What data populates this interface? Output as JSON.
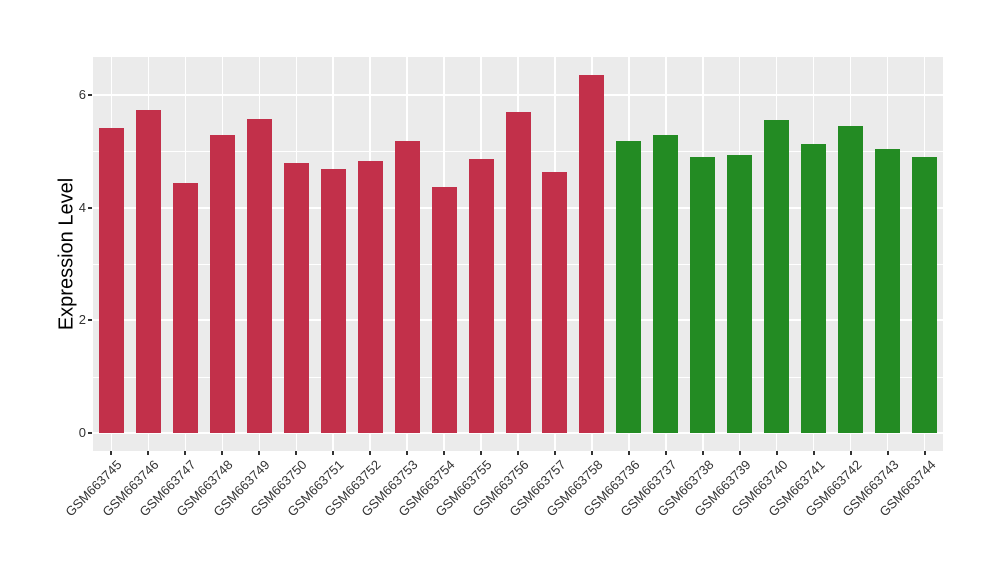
{
  "chart_data": {
    "type": "bar",
    "title": "",
    "xlabel": "",
    "ylabel": "Expression Level",
    "ylim": [
      0,
      6.68
    ],
    "yticks": [
      0,
      2,
      4,
      6
    ],
    "yticks_minor": [
      1,
      3,
      5
    ],
    "grid": "white major and minor gridlines on grey panel",
    "legend_position": "none",
    "figure_background": "#FFFFFF",
    "panel_background": "#EBEBEB",
    "gridline_color": "#FFFFFF",
    "axis_text_color": "#333333",
    "axis_title_color": "#000000",
    "tick_mark_color": "#333333",
    "group_colors": {
      "red": "#C2304A",
      "green": "#238B23"
    },
    "categories": [
      "GSM663745",
      "GSM663746",
      "GSM663747",
      "GSM663748",
      "GSM663749",
      "GSM663750",
      "GSM663751",
      "GSM663752",
      "GSM663753",
      "GSM663754",
      "GSM663755",
      "GSM663756",
      "GSM663757",
      "GSM663758",
      "GSM663736",
      "GSM663737",
      "GSM663738",
      "GSM663739",
      "GSM663740",
      "GSM663741",
      "GSM663742",
      "GSM663743",
      "GSM663744"
    ],
    "values": [
      5.42,
      5.74,
      4.43,
      5.28,
      5.57,
      4.79,
      4.68,
      4.83,
      5.19,
      4.37,
      4.86,
      5.69,
      4.64,
      6.35,
      5.18,
      5.29,
      4.9,
      4.93,
      5.55,
      5.13,
      5.45,
      5.04,
      4.89
    ],
    "bar_groups": [
      "red",
      "red",
      "red",
      "red",
      "red",
      "red",
      "red",
      "red",
      "red",
      "red",
      "red",
      "red",
      "red",
      "red",
      "green",
      "green",
      "green",
      "green",
      "green",
      "green",
      "green",
      "green",
      "green"
    ]
  }
}
